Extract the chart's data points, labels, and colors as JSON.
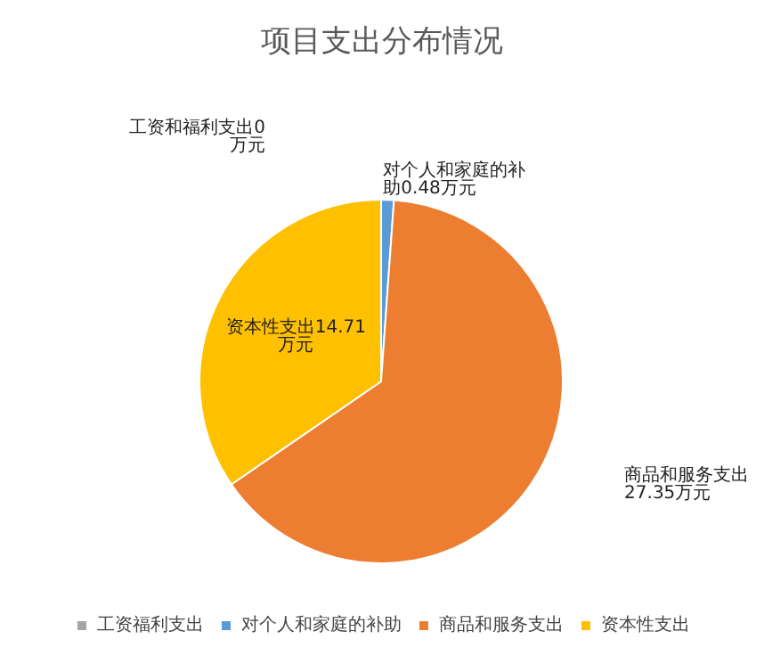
{
  "chart_data": {
    "type": "pie",
    "title": "项目支出分布情况",
    "categories": [
      "工资福利支出",
      "对个人和家庭的补助",
      "商品和服务支出",
      "资本性支出"
    ],
    "values": [
      0,
      0.48,
      27.35,
      14.71
    ],
    "colors": [
      "#a5a5a5",
      "#5b9bd5",
      "#ed7d31",
      "#ffc000"
    ],
    "value_labels": [
      "工资和福利支出0万元",
      "对个人和家庭的补助0.48万元",
      "商品和服务支出27.35万元",
      "资本性支出14.71万元"
    ],
    "legend": "bottom"
  }
}
